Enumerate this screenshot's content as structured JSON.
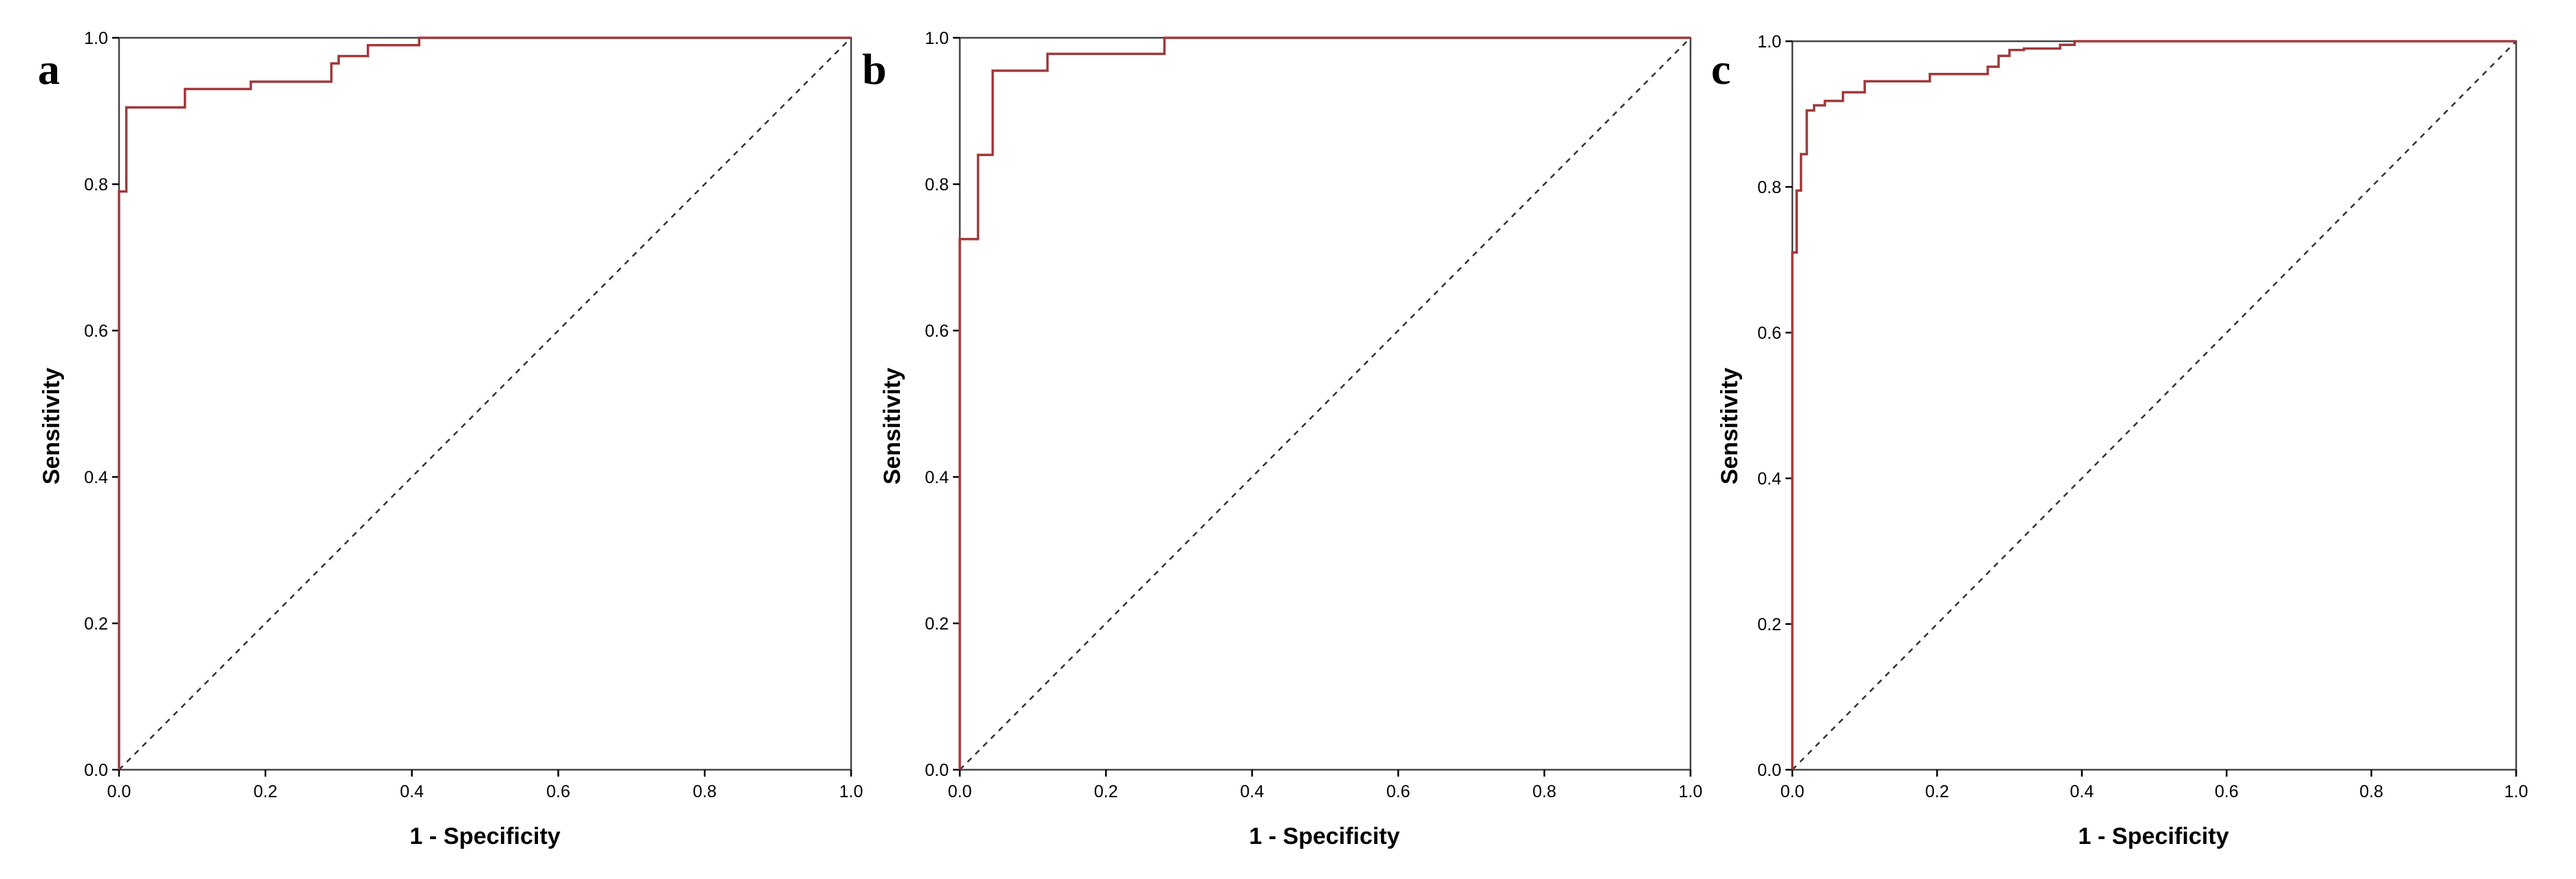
{
  "colors": {
    "roc": "#a0393b",
    "frame": "#444444",
    "diagonal": "#333333"
  },
  "chart_data": [
    {
      "type": "line",
      "panel_label": "a",
      "xlabel": "1 - Specificity",
      "ylabel": "Sensitivity",
      "xlim": [
        0,
        1
      ],
      "ylim": [
        0,
        1
      ],
      "xticks": [
        "0.0",
        "0.2",
        "0.4",
        "0.6",
        "0.8",
        "1.0"
      ],
      "yticks": [
        "0.0",
        "0.2",
        "0.4",
        "0.6",
        "0.8",
        "1.0"
      ],
      "grid": false,
      "reference_line": "diagonal",
      "series": [
        {
          "x": [
            0,
            0,
            0.01,
            0.01,
            0.09,
            0.09,
            0.18,
            0.18,
            0.29,
            0.29,
            0.3,
            0.3,
            0.34,
            0.34,
            0.41,
            0.41,
            1.0
          ],
          "y": [
            0,
            0.79,
            0.79,
            0.905,
            0.905,
            0.93,
            0.93,
            0.94,
            0.94,
            0.965,
            0.965,
            0.975,
            0.975,
            0.99,
            0.99,
            1.0,
            1.0
          ]
        }
      ]
    },
    {
      "type": "line",
      "panel_label": "b",
      "xlabel": "1 - Specificity",
      "ylabel": "Sensitivity",
      "xlim": [
        0,
        1
      ],
      "ylim": [
        0,
        1
      ],
      "xticks": [
        "0.0",
        "0.2",
        "0.4",
        "0.6",
        "0.8",
        "1.0"
      ],
      "yticks": [
        "0.0",
        "0.2",
        "0.4",
        "0.6",
        "0.8",
        "1.0"
      ],
      "grid": false,
      "reference_line": "diagonal",
      "series": [
        {
          "x": [
            0,
            0,
            0.025,
            0.025,
            0.045,
            0.045,
            0.12,
            0.12,
            0.28,
            0.28,
            1.0
          ],
          "y": [
            0,
            0.725,
            0.725,
            0.84,
            0.84,
            0.955,
            0.955,
            0.978,
            0.978,
            1.0,
            1.0
          ]
        }
      ]
    },
    {
      "type": "line",
      "panel_label": "c",
      "xlabel": "1 - Specificity",
      "ylabel": "Sensitivity",
      "xlim": [
        0,
        1
      ],
      "ylim": [
        0,
        1
      ],
      "xticks": [
        "0.0",
        "0.2",
        "0.4",
        "0.6",
        "0.8",
        "1.0"
      ],
      "yticks": [
        "0.0",
        "0.2",
        "0.4",
        "0.6",
        "0.8",
        "1.0"
      ],
      "grid": false,
      "reference_line": "diagonal",
      "series": [
        {
          "x": [
            0,
            0,
            0.006,
            0.006,
            0.012,
            0.012,
            0.02,
            0.02,
            0.03,
            0.03,
            0.045,
            0.045,
            0.07,
            0.07,
            0.1,
            0.1,
            0.19,
            0.19,
            0.27,
            0.27,
            0.285,
            0.285,
            0.3,
            0.3,
            0.32,
            0.32,
            0.37,
            0.37,
            0.39,
            0.39,
            1.0
          ],
          "y": [
            0,
            0.71,
            0.71,
            0.795,
            0.795,
            0.845,
            0.845,
            0.905,
            0.905,
            0.912,
            0.912,
            0.918,
            0.918,
            0.93,
            0.93,
            0.945,
            0.945,
            0.955,
            0.955,
            0.965,
            0.965,
            0.98,
            0.98,
            0.988,
            0.988,
            0.99,
            0.99,
            0.995,
            0.995,
            1.0,
            1.0
          ]
        }
      ]
    }
  ]
}
